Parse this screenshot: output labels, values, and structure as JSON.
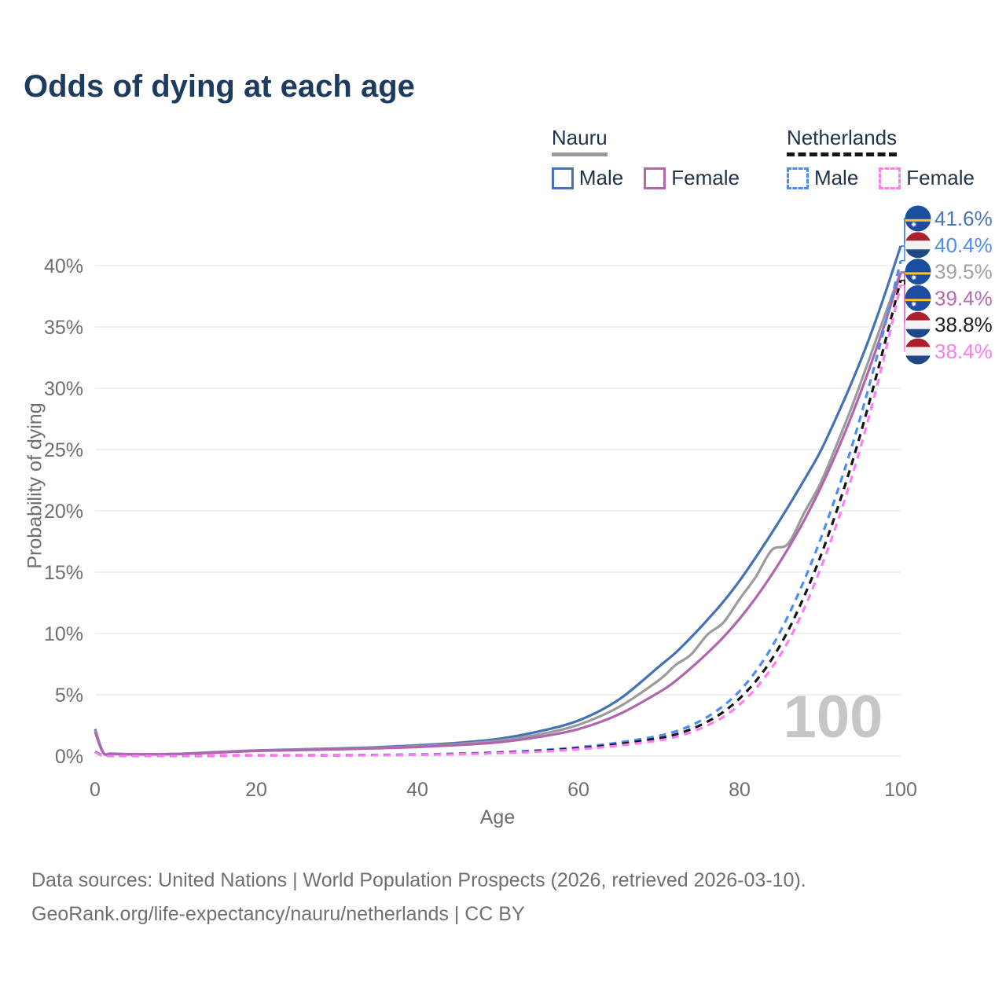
{
  "title": "Odds of dying at each age",
  "legend": {
    "groups": [
      {
        "name": "Nauru",
        "underline_style": "solid",
        "underline_color": "#9b9b9b",
        "items": [
          {
            "label": "Male",
            "color": "#4472b4",
            "dashed": false
          },
          {
            "label": "Female",
            "color": "#b165ae",
            "dashed": false
          }
        ]
      },
      {
        "name": "Netherlands",
        "underline_style": "dashed",
        "underline_color": "#141414",
        "items": [
          {
            "label": "Male",
            "color": "#4b8cf5",
            "dashed": true
          },
          {
            "label": "Female",
            "color": "#fd7df2",
            "dashed": true
          }
        ]
      }
    ]
  },
  "chart_data": {
    "type": "line",
    "title": "Odds of dying at each age",
    "xlabel": "Age",
    "ylabel": "Probability of dying",
    "xlim": [
      0,
      100
    ],
    "ylim_pct": [
      0,
      43
    ],
    "x_ticks": [
      0,
      20,
      40,
      60,
      80,
      100
    ],
    "y_ticks_pct": [
      0,
      5,
      10,
      15,
      20,
      25,
      30,
      35,
      40
    ],
    "y_tick_suffix": "%",
    "grid": true,
    "legend_position": "top-right",
    "watermark": "100",
    "x": [
      0,
      1,
      2,
      5,
      10,
      15,
      20,
      25,
      30,
      35,
      40,
      45,
      50,
      55,
      60,
      65,
      70,
      72,
      74,
      76,
      78,
      80,
      82,
      84,
      86,
      88,
      90,
      92,
      94,
      96,
      98,
      100
    ],
    "series": [
      {
        "name": "Nauru Male",
        "country": "Nauru",
        "sex": "male",
        "style": "solid",
        "color": "#4472b4",
        "label_color": "#4a74b4",
        "flag": "nauru",
        "end_label": "41.6%",
        "values_pct": [
          2.2,
          0.3,
          0.2,
          0.16,
          0.18,
          0.32,
          0.46,
          0.54,
          0.62,
          0.72,
          0.88,
          1.08,
          1.4,
          2.0,
          2.9,
          4.6,
          7.3,
          8.4,
          9.7,
          11.1,
          12.6,
          14.3,
          16.2,
          18.2,
          20.3,
          22.5,
          24.8,
          27.6,
          30.6,
          33.9,
          37.6,
          41.6
        ]
      },
      {
        "name": "Netherlands Male",
        "country": "Netherlands",
        "sex": "male",
        "style": "dashed",
        "color": "#4b8cf5",
        "label_color": "#4d8df2",
        "flag": "netherlands",
        "end_label": "40.4%",
        "values_pct": [
          0.35,
          0.04,
          0.02,
          0.01,
          0.01,
          0.03,
          0.06,
          0.06,
          0.07,
          0.09,
          0.13,
          0.19,
          0.3,
          0.47,
          0.72,
          1.1,
          1.65,
          2.0,
          2.5,
          3.2,
          4.1,
          5.3,
          6.9,
          8.9,
          11.4,
          14.3,
          17.6,
          21.3,
          25.4,
          30.0,
          35.0,
          40.4
        ]
      },
      {
        "name": "Nauru (both sexes)",
        "country": "Nauru",
        "sex": "both",
        "style": "solid",
        "color": "#9b9b9b",
        "label_color": "#a0a0a0",
        "flag": "nauru",
        "end_label": "39.5%",
        "values_pct": [
          2.1,
          0.28,
          0.19,
          0.15,
          0.17,
          0.3,
          0.44,
          0.51,
          0.58,
          0.67,
          0.8,
          0.98,
          1.25,
          1.75,
          2.55,
          4.0,
          6.2,
          7.4,
          8.3,
          9.9,
          10.9,
          12.8,
          14.6,
          16.8,
          17.3,
          19.8,
          22.2,
          25.3,
          28.6,
          32.2,
          35.9,
          39.5
        ]
      },
      {
        "name": "Nauru Female",
        "country": "Nauru",
        "sex": "female",
        "style": "solid",
        "color": "#b165ae",
        "label_color": "#b56ab2",
        "flag": "nauru",
        "end_label": "39.4%",
        "values_pct": [
          1.95,
          0.27,
          0.18,
          0.14,
          0.16,
          0.28,
          0.42,
          0.48,
          0.55,
          0.63,
          0.74,
          0.9,
          1.12,
          1.55,
          2.2,
          3.4,
          5.2,
          6.1,
          7.2,
          8.4,
          9.7,
          11.2,
          12.9,
          14.8,
          16.9,
          19.2,
          21.8,
          24.7,
          27.9,
          31.4,
          35.2,
          39.4
        ]
      },
      {
        "name": "Netherlands (both sexes)",
        "country": "Netherlands",
        "sex": "both",
        "style": "dashed",
        "color": "#141414",
        "label_color": "#1f1f1f",
        "flag": "netherlands",
        "end_label": "38.8%",
        "values_pct": [
          0.32,
          0.035,
          0.018,
          0.01,
          0.01,
          0.025,
          0.05,
          0.05,
          0.06,
          0.08,
          0.11,
          0.17,
          0.26,
          0.41,
          0.63,
          0.97,
          1.45,
          1.75,
          2.2,
          2.8,
          3.6,
          4.7,
          6.1,
          7.9,
          10.2,
          13.0,
          16.2,
          19.9,
          24.0,
          28.6,
          33.6,
          38.8
        ]
      },
      {
        "name": "Netherlands Female",
        "country": "Netherlands",
        "sex": "female",
        "style": "dashed",
        "color": "#fd7df2",
        "label_color": "#fb7cf2",
        "flag": "netherlands",
        "end_label": "38.4%",
        "values_pct": [
          0.3,
          0.03,
          0.015,
          0.01,
          0.01,
          0.02,
          0.04,
          0.04,
          0.05,
          0.07,
          0.1,
          0.15,
          0.23,
          0.36,
          0.55,
          0.85,
          1.28,
          1.55,
          1.95,
          2.5,
          3.2,
          4.2,
          5.5,
          7.2,
          9.3,
          12.0,
          15.2,
          18.8,
          22.9,
          27.5,
          32.7,
          38.4
        ]
      }
    ],
    "flag_colors": {
      "nauru_blue": "#1b4da1",
      "nauru_yellow": "#ffc61e",
      "nauru_star": "#ffffff",
      "nl_red": "#ad1f2d",
      "nl_white": "#f2f2f2",
      "nl_blue": "#1e4785"
    }
  },
  "colors": {
    "title": "#1d3a5f",
    "axis_text": "#6f6f6f",
    "gridline": "#ececec",
    "watermark": "#c6c6c6",
    "legend_text": "#22334a"
  },
  "footer": {
    "line1": "Data sources: United Nations | World Population Prospects (2026, retrieved 2026-03-10).",
    "line2": "GeoRank.org/life-expectancy/nauru/netherlands | CC BY"
  }
}
